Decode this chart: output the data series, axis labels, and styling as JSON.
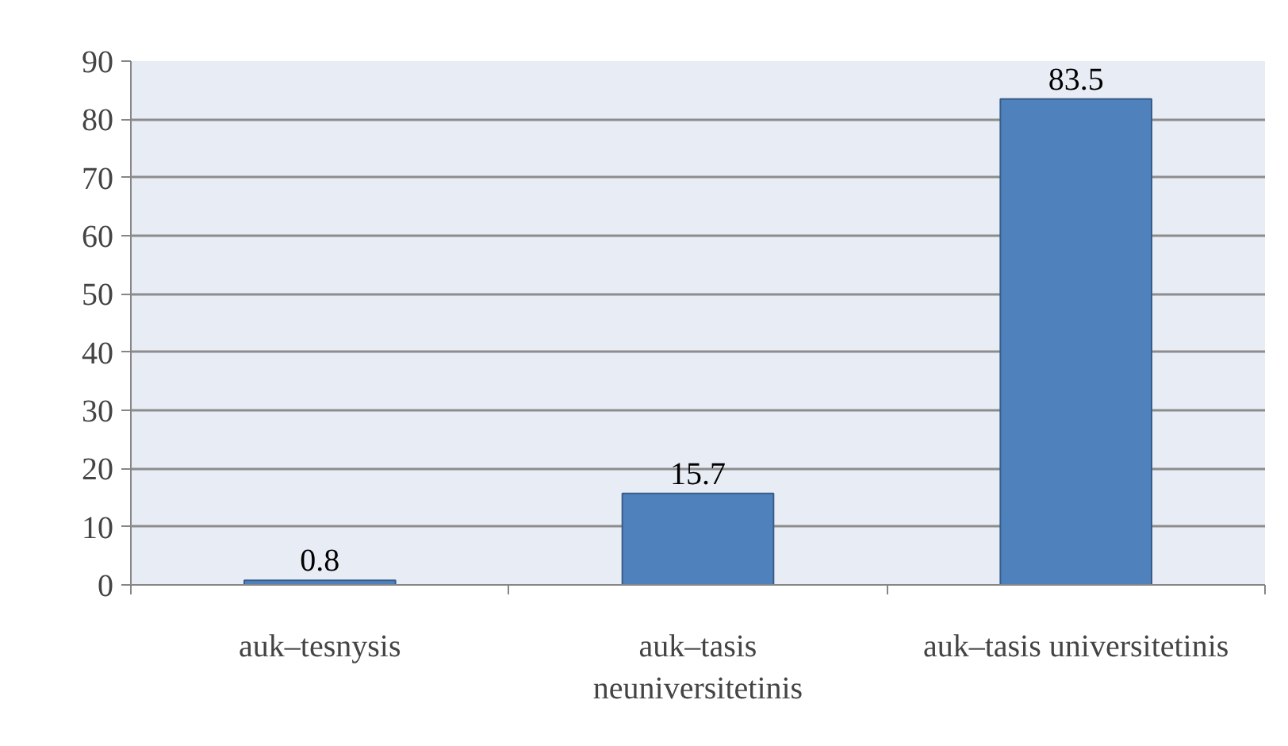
{
  "chart_data": {
    "type": "bar",
    "categories": [
      "auk–tesnysis",
      "auk–tasis neuniversitetinis",
      "auk–tasis universitetinis"
    ],
    "values": [
      0.8,
      15.7,
      83.5
    ],
    "color": "#4f81bd",
    "ylim": [
      0,
      90
    ],
    "yticks": [
      0,
      10,
      20,
      30,
      40,
      50,
      60,
      70,
      80,
      90
    ],
    "grid": "y",
    "data_labels": true
  }
}
